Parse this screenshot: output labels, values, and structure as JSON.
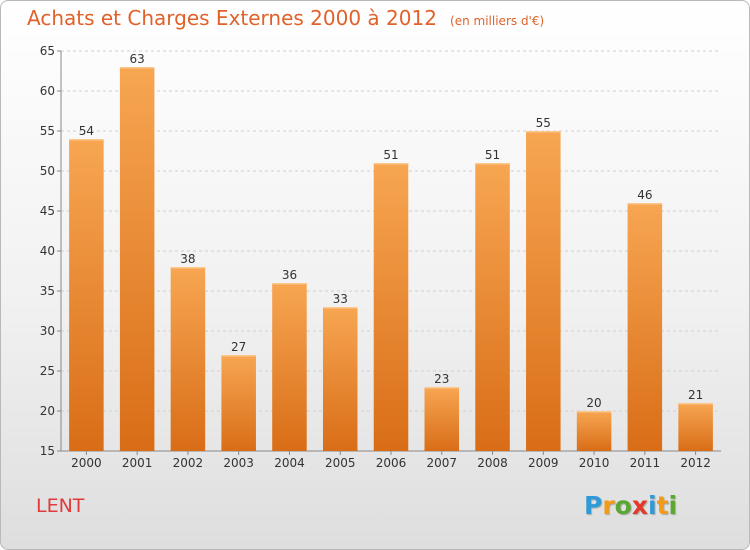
{
  "header": {
    "title": "Achats et Charges Externes 2000 à 2012",
    "unit": "(en milliers d'€)"
  },
  "footer": {
    "commune": "LENT",
    "logo": "Proxiti",
    "logo_letters": [
      "P",
      "r",
      "o",
      "x",
      "i",
      "t",
      "i"
    ],
    "logo_colors": [
      "#2e9ad6",
      "#f29a1a",
      "#5aa832",
      "#e23a2a",
      "#2e9ad6",
      "#f29a1a",
      "#5aa832"
    ]
  },
  "colors": {
    "title": "#e0622a",
    "commune": "#e03a3a",
    "bar_light": "#f7a652",
    "bar_dark": "#d96d17",
    "grid": "#cfcfcf",
    "text": "#333333"
  },
  "chart_data": {
    "type": "bar",
    "title": "Achats et Charges Externes 2000 à 2012",
    "subtitle": "(en milliers d'€)",
    "xlabel": "",
    "ylabel": "",
    "categories": [
      "2000",
      "2001",
      "2002",
      "2003",
      "2004",
      "2005",
      "2006",
      "2007",
      "2008",
      "2009",
      "2010",
      "2011",
      "2012"
    ],
    "values": [
      54,
      63,
      38,
      27,
      36,
      33,
      51,
      23,
      51,
      55,
      20,
      46,
      21
    ],
    "ylim": [
      15,
      65
    ],
    "yticks": [
      15,
      20,
      25,
      30,
      35,
      40,
      45,
      50,
      55,
      60,
      65
    ],
    "grid": true,
    "data_labels": true
  }
}
